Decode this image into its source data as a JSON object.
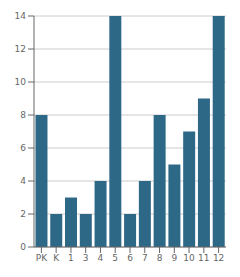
{
  "chart_data": {
    "type": "bar",
    "categories": [
      "PK",
      "K",
      "1",
      "3",
      "4",
      "5",
      "6",
      "7",
      "8",
      "9",
      "10",
      "11",
      "12"
    ],
    "values": [
      8,
      2,
      3,
      2,
      4,
      14,
      2,
      4,
      8,
      5,
      7,
      9,
      14
    ],
    "color": "#2e6887",
    "ylim": [
      0,
      14
    ],
    "yticks": [
      0,
      2,
      4,
      6,
      8,
      10,
      12,
      14
    ],
    "grid": true
  }
}
